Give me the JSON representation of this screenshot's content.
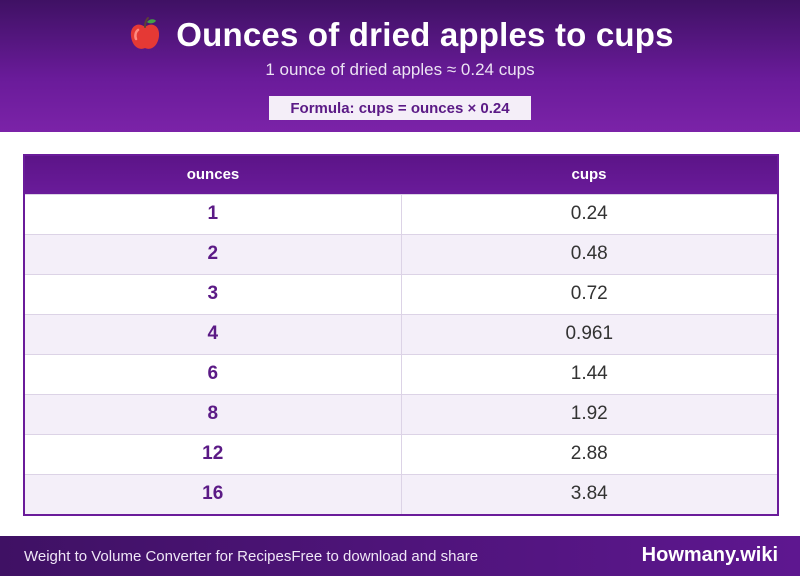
{
  "header": {
    "title": "Ounces of dried apples to cups",
    "icon": "apple-icon",
    "subtitle": "1 ounce of dried apples ≈ 0.24 cups",
    "formula": "Formula: cups = ounces × 0.24"
  },
  "table": {
    "headers": [
      "ounces",
      "cups"
    ],
    "rows": [
      {
        "ounces": "1",
        "cups": "0.24"
      },
      {
        "ounces": "2",
        "cups": "0.48"
      },
      {
        "ounces": "3",
        "cups": "0.72"
      },
      {
        "ounces": "4",
        "cups": "0.961"
      },
      {
        "ounces": "6",
        "cups": "1.44"
      },
      {
        "ounces": "8",
        "cups": "1.92"
      },
      {
        "ounces": "12",
        "cups": "2.88"
      },
      {
        "ounces": "16",
        "cups": "3.84"
      }
    ]
  },
  "footer": {
    "left": "Weight to Volume Converter for Recipes",
    "middle": "Free to download and share",
    "brand": "Howmany.wiki"
  },
  "colors": {
    "accent": "#6a1b9a",
    "header_dark": "#3f1164",
    "row_alt": "#f4eff9"
  }
}
